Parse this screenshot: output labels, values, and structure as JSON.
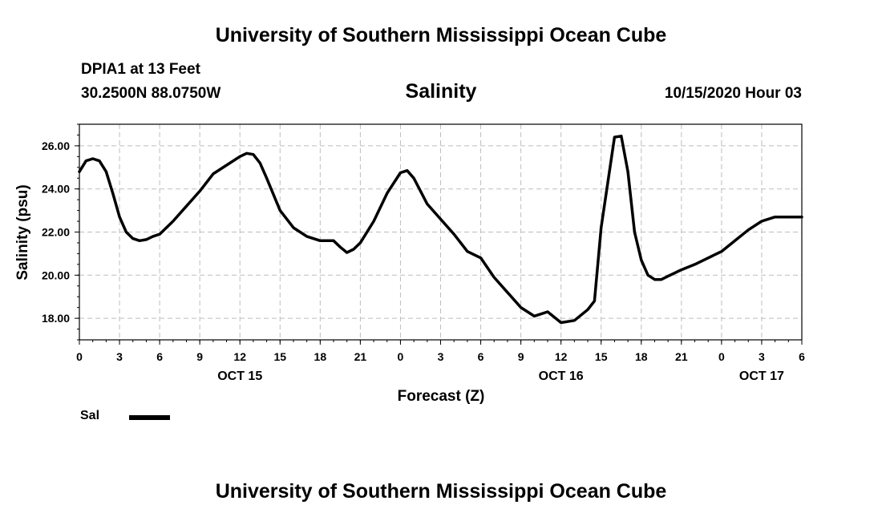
{
  "header": {
    "title": "University of Southern Mississippi Ocean Cube",
    "station": "DPIA1 at 13 Feet",
    "location": "30.2500N 88.0750W",
    "datetime": "10/15/2020 Hour 03"
  },
  "footer": {
    "title": "University of Southern Mississippi Ocean Cube"
  },
  "chart_data": {
    "type": "line",
    "title": "Salinity",
    "xlabel": "Forecast (Z)",
    "ylabel": "Salinity (psu)",
    "xlim": [
      0,
      54
    ],
    "ylim": [
      17,
      27
    ],
    "x_ticks": [
      0,
      3,
      6,
      9,
      12,
      15,
      18,
      21,
      24,
      27,
      30,
      33,
      36,
      39,
      42,
      45,
      48,
      51,
      54
    ],
    "x_tick_labels": [
      "0",
      "3",
      "6",
      "9",
      "12",
      "15",
      "18",
      "21",
      "0",
      "3",
      "6",
      "9",
      "12",
      "15",
      "18",
      "21",
      "0",
      "3",
      "6"
    ],
    "date_labels": [
      {
        "x": 12,
        "label": "OCT 15"
      },
      {
        "x": 36,
        "label": "OCT 16"
      },
      {
        "x": 51,
        "label": "OCT 17"
      }
    ],
    "y_ticks": [
      18,
      20,
      22,
      24,
      26
    ],
    "y_tick_labels": [
      "18.00",
      "20.00",
      "22.00",
      "24.00",
      "26.00"
    ],
    "grid": true,
    "legend_position": "bottom-left",
    "line_color": "#000000",
    "series": [
      {
        "name": "Sal",
        "x": [
          0,
          0.5,
          1,
          1.5,
          2,
          2.5,
          3,
          3.5,
          4,
          4.5,
          5,
          5.5,
          6,
          7,
          8,
          9,
          10,
          11,
          12,
          12.5,
          13,
          13.5,
          14,
          15,
          16,
          17,
          18,
          19,
          19.5,
          20,
          20.5,
          21,
          22,
          23,
          24,
          24.5,
          25,
          26,
          27,
          28,
          29,
          30,
          31,
          32,
          33,
          34,
          35,
          36,
          37,
          38,
          38.5,
          39,
          40,
          40.5,
          41,
          41.5,
          42,
          42.5,
          43,
          43.5,
          44,
          45,
          46,
          47,
          48,
          49,
          50,
          51,
          52,
          53,
          54
        ],
        "y": [
          24.8,
          25.3,
          25.4,
          25.3,
          24.8,
          23.8,
          22.7,
          22.0,
          21.7,
          21.6,
          21.65,
          21.8,
          21.9,
          22.5,
          23.2,
          23.9,
          24.7,
          25.1,
          25.5,
          25.65,
          25.6,
          25.2,
          24.5,
          23.0,
          22.2,
          21.8,
          21.6,
          21.6,
          21.3,
          21.05,
          21.2,
          21.5,
          22.5,
          23.8,
          24.75,
          24.85,
          24.5,
          23.3,
          22.6,
          21.9,
          21.1,
          20.8,
          19.9,
          19.2,
          18.5,
          18.1,
          18.3,
          17.8,
          17.9,
          18.4,
          18.8,
          22.2,
          26.4,
          26.45,
          24.8,
          22.0,
          20.7,
          20.0,
          19.8,
          19.8,
          19.95,
          20.25,
          20.5,
          20.8,
          21.1,
          21.6,
          22.1,
          22.5,
          22.7,
          22.7,
          22.7
        ]
      }
    ]
  }
}
